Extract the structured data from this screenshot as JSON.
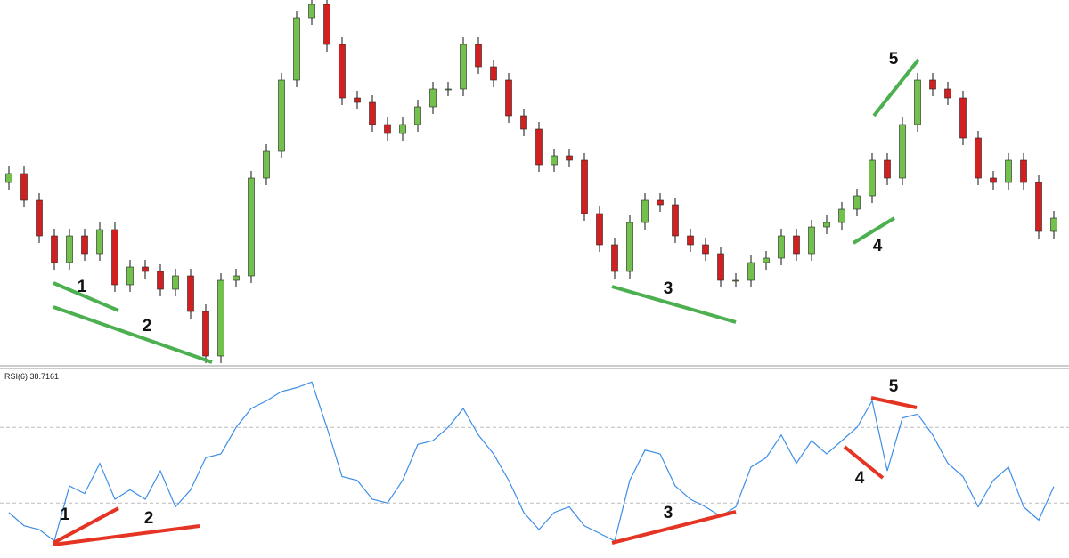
{
  "chart_data": [
    {
      "type": "candlestick",
      "annotations": [
        "1",
        "2",
        "3",
        "4",
        "5"
      ],
      "up_color": "#72c14c",
      "down_color": "#d21f1f",
      "ylim": [
        -10,
        420
      ],
      "series": {
        "open": [
          205,
          215,
          185,
          145,
          115,
          145,
          125,
          152,
          90,
          110,
          105,
          85,
          100,
          60,
          10,
          95,
          100,
          210,
          240,
          320,
          390,
          405,
          360,
          300,
          295,
          270,
          260,
          270,
          290,
          310,
          310,
          360,
          335,
          320,
          280,
          265,
          225,
          235,
          230,
          170,
          135,
          105,
          160,
          185,
          180,
          145,
          135,
          125,
          95,
          95,
          115,
          120,
          145,
          125,
          155,
          160,
          175,
          190,
          230,
          210,
          270,
          320,
          310,
          300,
          255,
          210,
          205,
          230,
          205,
          150
        ],
        "high": [
          223,
          223,
          193,
          153,
          153,
          153,
          160,
          160,
          118,
          118,
          113,
          108,
          108,
          68,
          103,
          108,
          218,
          248,
          328,
          398,
          413,
          413,
          368,
          308,
          303,
          278,
          278,
          298,
          318,
          318,
          368,
          368,
          343,
          328,
          288,
          273,
          243,
          243,
          238,
          178,
          143,
          168,
          193,
          193,
          188,
          153,
          143,
          133,
          103,
          123,
          128,
          153,
          153,
          163,
          168,
          183,
          198,
          238,
          238,
          278,
          328,
          328,
          318,
          308,
          263,
          218,
          238,
          238,
          213,
          173
        ],
        "low": [
          197,
          177,
          137,
          107,
          107,
          117,
          117,
          82,
          82,
          97,
          77,
          77,
          52,
          2,
          2,
          87,
          92,
          202,
          232,
          312,
          382,
          352,
          292,
          287,
          262,
          252,
          252,
          262,
          282,
          302,
          302,
          327,
          312,
          272,
          257,
          217,
          217,
          222,
          162,
          127,
          97,
          97,
          152,
          172,
          137,
          127,
          117,
          87,
          87,
          87,
          107,
          112,
          117,
          117,
          147,
          152,
          167,
          182,
          202,
          202,
          262,
          302,
          292,
          247,
          202,
          197,
          197,
          197,
          142,
          142
        ],
        "close": [
          215,
          185,
          145,
          115,
          145,
          125,
          152,
          90,
          110,
          105,
          85,
          100,
          60,
          10,
          95,
          100,
          210,
          240,
          320,
          390,
          405,
          360,
          300,
          295,
          270,
          260,
          270,
          290,
          310,
          310,
          360,
          335,
          320,
          280,
          265,
          225,
          235,
          230,
          170,
          135,
          105,
          160,
          185,
          180,
          145,
          135,
          125,
          95,
          95,
          115,
          120,
          145,
          125,
          155,
          160,
          175,
          190,
          230,
          210,
          270,
          320,
          310,
          300,
          255,
          210,
          205,
          230,
          205,
          150,
          165
        ]
      }
    },
    {
      "type": "line",
      "title": "RSI(6) 38.7161",
      "annotations": [
        "1",
        "2",
        "3",
        "4",
        "5"
      ],
      "color": "#3d8ee8",
      "ylim": [
        0,
        100
      ],
      "levels": [
        30,
        70
      ],
      "values": [
        25,
        18,
        16,
        10,
        39,
        35,
        51,
        32,
        37,
        32,
        47,
        28,
        37,
        54,
        56,
        70,
        80,
        84,
        89,
        91,
        94,
        70,
        44,
        42,
        32,
        30,
        42,
        61,
        63,
        70,
        80,
        66,
        56,
        42,
        25,
        16,
        25,
        28,
        18,
        14,
        10,
        42,
        58,
        56,
        39,
        32,
        28,
        23,
        28,
        49,
        54,
        66,
        51,
        63,
        56,
        63,
        70,
        84,
        47,
        75,
        77,
        66,
        51,
        44,
        28,
        42,
        49,
        28,
        21,
        38.7161
      ]
    }
  ]
}
